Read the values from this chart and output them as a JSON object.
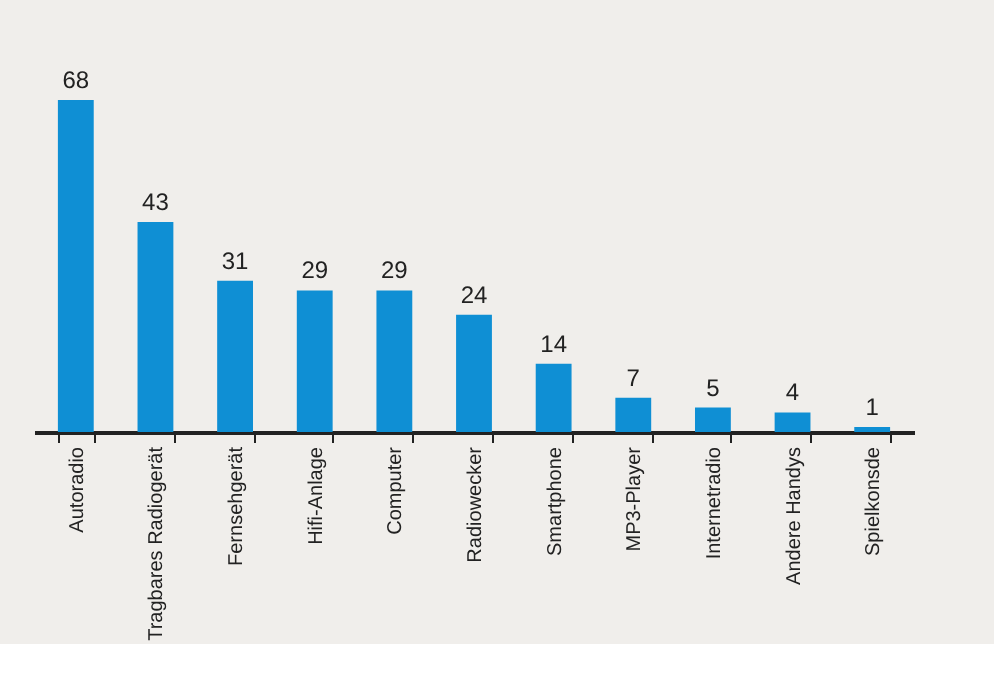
{
  "chart_data": {
    "type": "bar",
    "categories": [
      "Autoradio",
      "Tragbares Radiogerät",
      "Fernsehgerät",
      "Hifi-Anlage",
      "Computer",
      "Radiowecker",
      "Smartphone",
      "MP3-Player",
      "Internetradio",
      "Andere Handys",
      "Spielkonsde"
    ],
    "values": [
      68,
      43,
      31,
      29,
      29,
      24,
      14,
      7,
      5,
      4,
      1
    ],
    "color": "#0f8fd4",
    "data_labels": true
  }
}
